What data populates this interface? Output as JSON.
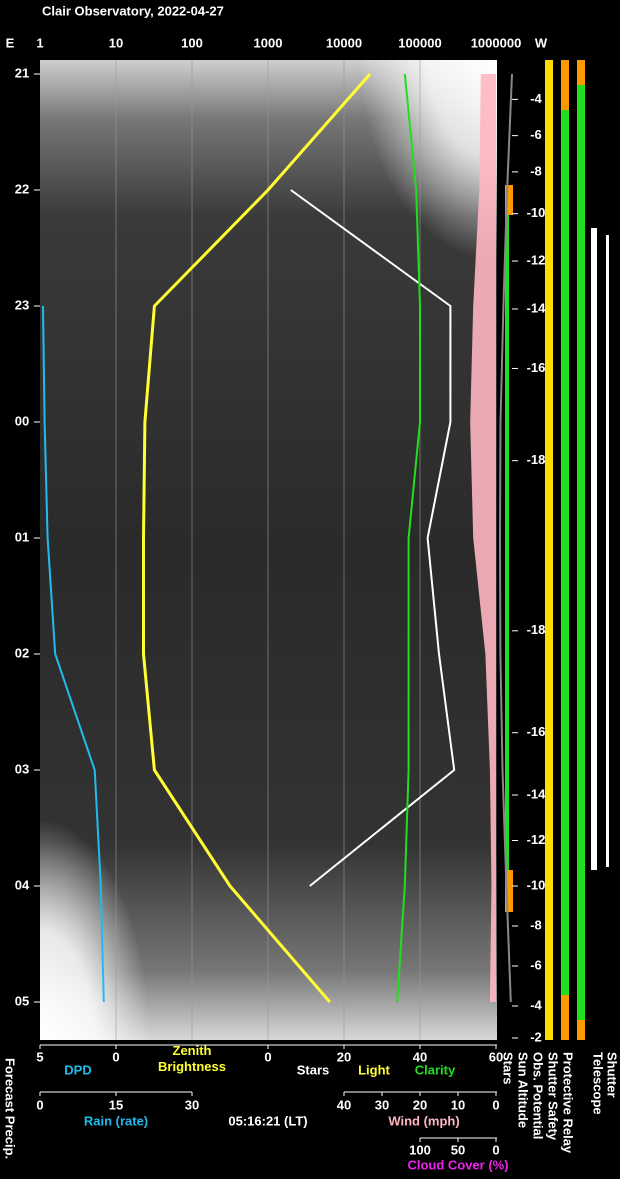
{
  "chart_data": {
    "type": "line",
    "title": "Clair Observatory, 2022-04-27",
    "east_label": "E",
    "west_label": "W",
    "times": [
      "21",
      "22",
      "23",
      "00",
      "01",
      "02",
      "03",
      "04",
      "05"
    ],
    "brightness_lim": [
      1,
      1000000
    ],
    "brightness_ticks": [
      1,
      10,
      100,
      1000,
      10000,
      100000,
      1000000
    ],
    "log_scale": true,
    "grid": true,
    "brightness_label": "Zenith Brightness",
    "sun_altitude_ticks": [
      -4,
      -6,
      -8,
      -10,
      -12,
      -14,
      -16,
      -18,
      -18,
      -16,
      -14,
      -12,
      -10,
      -8,
      -6,
      -4,
      -2
    ],
    "dpd_axis": {
      "label": "DPD",
      "lim": [
        5,
        0
      ],
      "ticks": [
        5,
        0
      ]
    },
    "stars_axis": {
      "labels": [
        "Stars",
        "Light",
        "Clarity"
      ],
      "lim": [
        0,
        60
      ],
      "ticks": [
        0,
        20,
        40,
        60
      ]
    },
    "rain_axis": {
      "label": "Rain (rate)",
      "lim": [
        0,
        30
      ],
      "ticks": [
        0,
        15,
        30
      ]
    },
    "wind_axis": {
      "label": "Wind (mph)",
      "lim": [
        40,
        0
      ],
      "ticks": [
        40,
        30,
        20,
        10,
        0
      ]
    },
    "cloud_axis": {
      "label": "Cloud Cover (%)",
      "lim": [
        100,
        0
      ],
      "ticks": [
        100,
        50,
        0
      ]
    },
    "timestamp": "05:16:21 (LT)",
    "forecast_label": "Forecast Precip.",
    "status_labels": [
      "Stars",
      "Sun Altitude",
      "Obs. Potential",
      "Shutter Safety",
      "Protective Relay",
      "Telescope",
      "Shutter"
    ],
    "series": [
      {
        "name": "Zenith Brightness",
        "color": "#ffff33",
        "axis": "brightness",
        "values": [
          22000,
          1000,
          32,
          24,
          23,
          23,
          32,
          316,
          6500
        ]
      },
      {
        "name": "Stars",
        "color": "#ffffff",
        "axis": "stars",
        "values": [
          null,
          6,
          48,
          48,
          42,
          45,
          49,
          11,
          null
        ]
      },
      {
        "name": "Clarity",
        "color": "#22dd22",
        "axis": "stars",
        "values": [
          36,
          39,
          40,
          40,
          37,
          37,
          37,
          36,
          34
        ]
      },
      {
        "name": "DPD",
        "color": "#22bbee",
        "axis": "dpd",
        "values": [
          null,
          null,
          4.8,
          4.7,
          4.5,
          4.0,
          1.4,
          1.0,
          0.8
        ]
      },
      {
        "name": "Cloud Cover (%)",
        "color": "#ffb6c1",
        "axis": "cloud",
        "values": [
          20,
          22,
          30,
          34,
          30,
          14,
          8,
          6,
          8
        ]
      },
      {
        "name": "Sun Altitude",
        "color": "#888888",
        "axis": "sun",
        "values": [
          -2.6,
          -9,
          -13.9,
          -17.8,
          -18.4,
          -17.9,
          -15.1,
          -10,
          -4.2
        ]
      }
    ]
  }
}
